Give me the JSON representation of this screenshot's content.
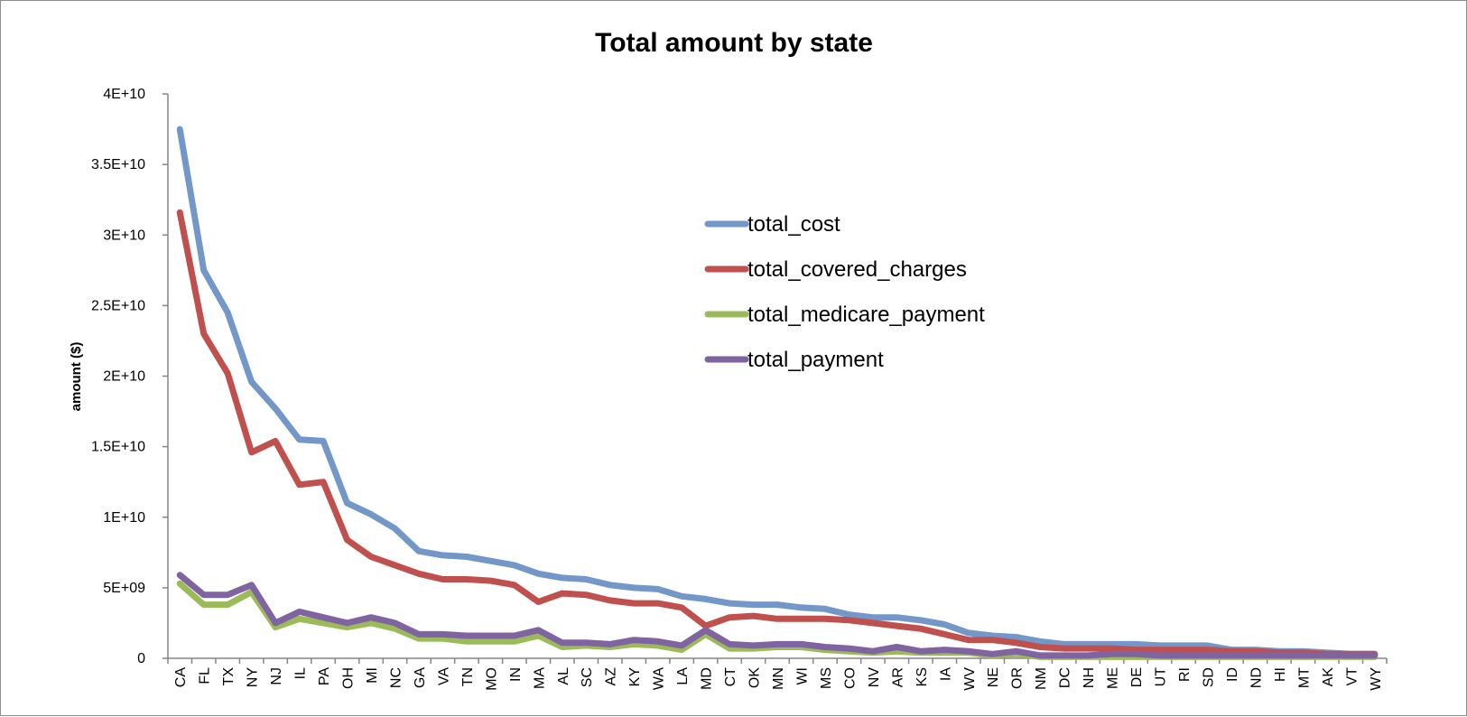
{
  "chart_data": {
    "type": "line",
    "title": "Total amount by state",
    "xlabel": "",
    "ylabel": "amount ($)",
    "ylim": [
      0,
      40000000000
    ],
    "yticks": [
      0,
      5000000000,
      10000000000,
      15000000000,
      20000000000,
      25000000000,
      30000000000,
      35000000000,
      40000000000
    ],
    "ytick_labels": [
      "0",
      "5E+09",
      "1E+10",
      "1.5E+10",
      "2E+10",
      "2.5E+10",
      "3E+10",
      "3.5E+10",
      "4E+10"
    ],
    "grid": false,
    "legend_position": "right",
    "categories": [
      "CA",
      "FL",
      "TX",
      "NY",
      "NJ",
      "IL",
      "PA",
      "OH",
      "MI",
      "NC",
      "GA",
      "VA",
      "TN",
      "MO",
      "IN",
      "MA",
      "AL",
      "SC",
      "AZ",
      "KY",
      "WA",
      "LA",
      "MD",
      "CT",
      "OK",
      "MN",
      "WI",
      "MS",
      "CO",
      "NV",
      "AR",
      "KS",
      "IA",
      "WV",
      "NE",
      "OR",
      "NM",
      "DC",
      "NH",
      "ME",
      "DE",
      "UT",
      "RI",
      "SD",
      "ID",
      "ND",
      "HI",
      "MT",
      "AK",
      "VT",
      "WY"
    ],
    "series": [
      {
        "name": "total_cost",
        "color": "#7397C9",
        "values": [
          37500000000,
          27500000000,
          24500000000,
          19600000000,
          17700000000,
          15500000000,
          15400000000,
          11000000000,
          10200000000,
          9200000000,
          7600000000,
          7300000000,
          7200000000,
          6900000000,
          6600000000,
          6000000000,
          5700000000,
          5600000000,
          5200000000,
          5000000000,
          4900000000,
          4400000000,
          4200000000,
          3900000000,
          3800000000,
          3800000000,
          3600000000,
          3500000000,
          3100000000,
          2900000000,
          2900000000,
          2700000000,
          2400000000,
          1800000000,
          1600000000,
          1500000000,
          1200000000,
          1000000000,
          1000000000,
          1000000000,
          1000000000,
          900000000,
          900000000,
          900000000,
          600000000,
          600000000,
          500000000,
          500000000,
          400000000,
          300000000,
          300000000
        ]
      },
      {
        "name": "total_covered_charges",
        "color": "#C0504D",
        "values": [
          31600000000,
          23000000000,
          20200000000,
          14600000000,
          15400000000,
          12300000000,
          12500000000,
          8400000000,
          7200000000,
          6600000000,
          6000000000,
          5600000000,
          5600000000,
          5500000000,
          5200000000,
          4000000000,
          4600000000,
          4500000000,
          4100000000,
          3900000000,
          3900000000,
          3600000000,
          2300000000,
          2900000000,
          3000000000,
          2800000000,
          2800000000,
          2800000000,
          2700000000,
          2500000000,
          2300000000,
          2100000000,
          1700000000,
          1300000000,
          1300000000,
          1100000000,
          800000000,
          700000000,
          700000000,
          700000000,
          600000000,
          600000000,
          600000000,
          600000000,
          500000000,
          500000000,
          400000000,
          400000000,
          300000000,
          300000000,
          300000000
        ]
      },
      {
        "name": "total_medicare_payment",
        "color": "#9BBB59",
        "values": [
          5300000000,
          3800000000,
          3800000000,
          4700000000,
          2200000000,
          2800000000,
          2500000000,
          2200000000,
          2500000000,
          2100000000,
          1400000000,
          1400000000,
          1200000000,
          1200000000,
          1200000000,
          1600000000,
          800000000,
          900000000,
          800000000,
          1000000000,
          900000000,
          600000000,
          1700000000,
          700000000,
          700000000,
          800000000,
          800000000,
          600000000,
          500000000,
          400000000,
          500000000,
          400000000,
          400000000,
          400000000,
          200000000,
          300000000,
          100000000,
          100000000,
          100000000,
          100000000,
          100000000,
          100000000,
          100000000,
          100000000,
          100000000,
          100000000,
          100000000,
          100000000,
          100000000,
          100000000,
          100000000
        ]
      },
      {
        "name": "total_payment",
        "color": "#8064A2",
        "values": [
          5900000000,
          4500000000,
          4500000000,
          5200000000,
          2500000000,
          3300000000,
          2900000000,
          2500000000,
          2900000000,
          2500000000,
          1700000000,
          1700000000,
          1600000000,
          1600000000,
          1600000000,
          2000000000,
          1100000000,
          1100000000,
          1000000000,
          1300000000,
          1200000000,
          900000000,
          2000000000,
          1000000000,
          900000000,
          1000000000,
          1000000000,
          800000000,
          700000000,
          500000000,
          800000000,
          500000000,
          600000000,
          500000000,
          300000000,
          500000000,
          200000000,
          200000000,
          200000000,
          300000000,
          300000000,
          200000000,
          200000000,
          200000000,
          200000000,
          200000000,
          200000000,
          200000000,
          200000000,
          200000000,
          200000000
        ]
      }
    ]
  }
}
